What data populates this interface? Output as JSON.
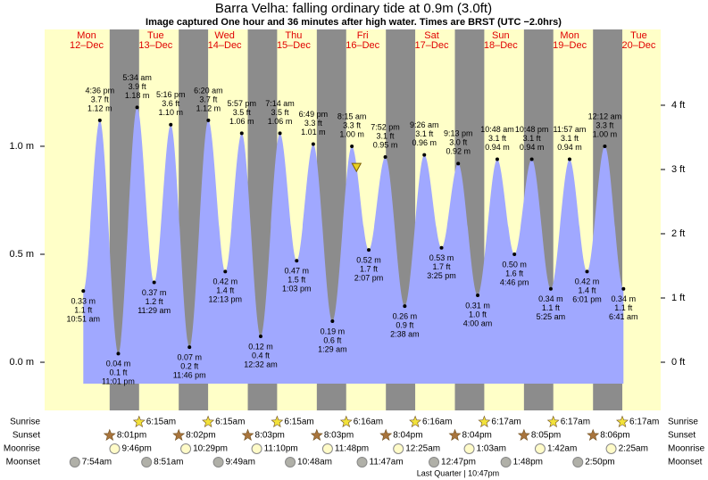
{
  "chart_data": {
    "type": "tide",
    "title": "Barra Velha: falling  ordinary tide at 0.9m (3.0ft)",
    "subtitle": "Image captured One hour and 36 minutes after high water. Times are BRST (UTC −2.0hrs)",
    "days": [
      {
        "weekday": "Mon",
        "date": "12–Dec"
      },
      {
        "weekday": "Tue",
        "date": "13–Dec"
      },
      {
        "weekday": "Wed",
        "date": "14–Dec"
      },
      {
        "weekday": "Thu",
        "date": "15–Dec"
      },
      {
        "weekday": "Fri",
        "date": "16–Dec"
      },
      {
        "weekday": "Sat",
        "date": "17–Dec"
      },
      {
        "weekday": "Sun",
        "date": "18–Dec"
      },
      {
        "weekday": "Mon",
        "date": "19–Dec"
      },
      {
        "weekday": "Tue",
        "date": "20–Dec"
      }
    ],
    "ylim": [
      -0.223,
      1.541
    ],
    "yticks": [
      {
        "value": 0,
        "label": "0.0 m"
      },
      {
        "value": 0.5,
        "label": "0.5 m"
      },
      {
        "value": 1,
        "label": "1.0 m"
      }
    ],
    "y2lim": [
      -0.75,
      5.18
    ],
    "y2ticks": [
      {
        "value": 0,
        "label": "0 ft"
      },
      {
        "value": 1,
        "label": "1 ft"
      },
      {
        "value": 2,
        "label": "2 ft"
      },
      {
        "value": 3,
        "label": "3 ft"
      },
      {
        "value": 4,
        "label": "4 ft"
      }
    ],
    "colors": {
      "day": "#ffffc8",
      "night": "#8c8c8c",
      "tide": "#a0a8ff",
      "day_label": "#e00000"
    },
    "tides": {
      "day_index": [
        0,
        0,
        0,
        1,
        1,
        1,
        1,
        2,
        2,
        2,
        3,
        3,
        3,
        3,
        4,
        4,
        4,
        4,
        5,
        5,
        5,
        5,
        6,
        6,
        6,
        6,
        7,
        7,
        7,
        8,
        8
      ],
      "times": [
        "10:51 am",
        "4:36 pm",
        "11:01 pm",
        "5:34 am",
        "11:29 am",
        "5:16 pm",
        "11:46 pm",
        "6:20 am",
        "12:13 pm",
        "5:57 pm",
        "12:32 am",
        "7:14 am",
        "1:03 pm",
        "6:49 pm",
        "1:29 am",
        "8:15 am",
        "2:07 pm",
        "7:52 pm",
        "2:38 am",
        "9:26 am",
        "3:25 pm",
        "9:13 pm",
        "4:00 am",
        "10:48 am",
        "4:46 pm",
        "10:48 pm",
        "5:25 am",
        "11:57 am",
        "6:01 pm",
        "12:12 am",
        "6:41 am"
      ],
      "values": [
        0.33,
        1.12,
        0.04,
        1.18,
        0.37,
        1.1,
        0.07,
        1.12,
        0.42,
        1.06,
        0.12,
        1.06,
        0.47,
        1.01,
        0.19,
        1.0,
        0.52,
        0.95,
        0.26,
        0.96,
        0.53,
        0.92,
        0.31,
        0.94,
        0.5,
        0.94,
        0.34,
        0.94,
        0.42,
        1.0,
        0.34
      ],
      "value_labels": [
        "0.33 m",
        "1.12 m",
        "0.04 m",
        "1.18 m",
        "0.37 m",
        "1.10 m",
        "0.07 m",
        "1.12 m",
        "0.42 m",
        "1.06 m",
        "0.12 m",
        "1.06 m",
        "0.47 m",
        "1.01 m",
        "0.19 m",
        "1.00 m",
        "0.52 m",
        "0.95 m",
        "0.26 m",
        "0.96 m",
        "0.53 m",
        "0.92 m",
        "0.31 m",
        "0.94 m",
        "0.50 m",
        "0.94 m",
        "0.34 m",
        "0.94 m",
        "0.42 m",
        "1.00 m",
        "0.34 m"
      ],
      "ft": [
        1.1,
        3.7,
        0.1,
        3.9,
        1.2,
        3.6,
        0.2,
        3.7,
        1.4,
        3.5,
        0.4,
        3.5,
        1.5,
        3.3,
        0.6,
        3.3,
        1.7,
        3.1,
        0.9,
        3.1,
        1.7,
        3.0,
        1.0,
        3.1,
        1.6,
        3.1,
        1.1,
        3.1,
        1.4,
        3.3,
        1.1
      ],
      "ft_labels": [
        "1.1 ft",
        "3.7 ft",
        "0.1 ft",
        "3.9 ft",
        "1.2 ft",
        "3.6 ft",
        "0.2 ft",
        "3.7 ft",
        "1.4 ft",
        "3.5 ft",
        "0.4 ft",
        "3.5 ft",
        "1.5 ft",
        "3.3 ft",
        "0.6 ft",
        "3.3 ft",
        "1.7 ft",
        "3.1 ft",
        "0.9 ft",
        "3.1 ft",
        "1.7 ft",
        "3.0 ft",
        "1.0 ft",
        "3.1 ft",
        "1.6 ft",
        "3.1 ft",
        "1.1 ft",
        "3.1 ft",
        "1.4 ft",
        "3.3 ft",
        "1.1 ft"
      ]
    },
    "now": {
      "day_index": 4,
      "hour": 9.85,
      "value": 0.9
    },
    "events": [
      {
        "label": "Sunrise",
        "kind": "sunrise",
        "day_index": [
          1,
          2,
          3,
          4,
          5,
          6,
          7,
          8
        ],
        "times": [
          "6:15am",
          "6:15am",
          "6:15am",
          "6:16am",
          "6:16am",
          "6:17am",
          "6:17am",
          "6:17am"
        ]
      },
      {
        "label": "Sunset",
        "kind": "sunset",
        "day_index": [
          0,
          1,
          2,
          3,
          4,
          5,
          6,
          7
        ],
        "times": [
          "8:01pm",
          "8:02pm",
          "8:03pm",
          "8:03pm",
          "8:04pm",
          "8:04pm",
          "8:05pm",
          "8:06pm"
        ]
      },
      {
        "label": "Moonrise",
        "kind": "moonrise",
        "day_index": [
          0,
          1,
          2,
          3,
          5,
          6,
          7,
          8
        ],
        "times": [
          "9:46pm",
          "10:29pm",
          "11:10pm",
          "11:48pm",
          "12:25am",
          "1:03am",
          "1:42am",
          "2:25am"
        ]
      },
      {
        "label": "Moonset",
        "kind": "moonset",
        "day_index": [
          0,
          1,
          2,
          3,
          4,
          5,
          6,
          7
        ],
        "times": [
          "7:54am",
          "8:51am",
          "9:49am",
          "10:48am",
          "11:47am",
          "12:47pm",
          "1:48pm",
          "2:50pm"
        ]
      }
    ],
    "moon_phase": "Last Quarter | 10:47pm"
  }
}
